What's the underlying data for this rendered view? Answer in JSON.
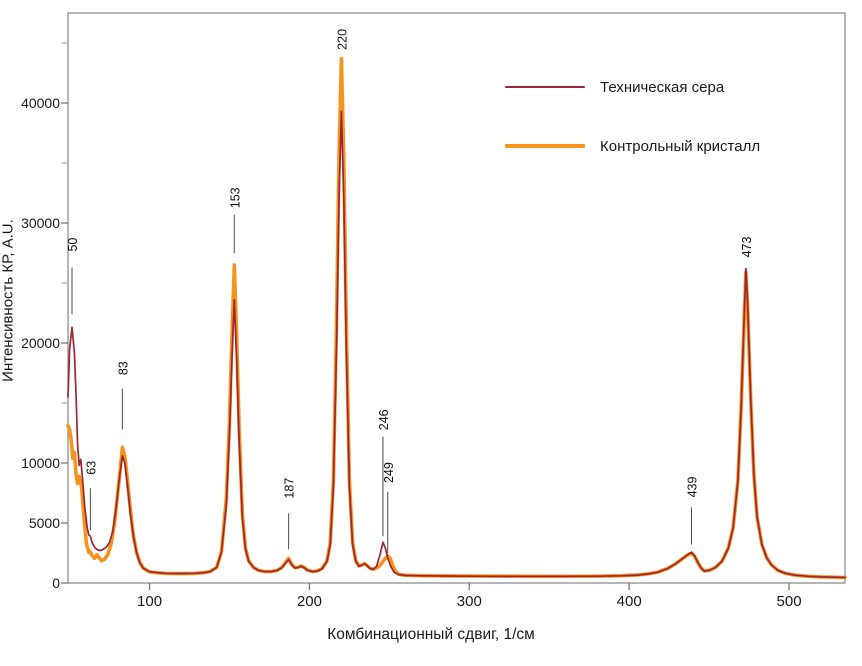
{
  "figure": {
    "background": "#ffffff",
    "frame_color": "#8f8f8f",
    "major_tick_color": "#777777",
    "minor_tick_color": "#ababab",
    "annotation_line_color": "#4a4a4a",
    "annotation_text_color": "#111111"
  },
  "chart_data": {
    "type": "line",
    "title": "",
    "xlabel": "Комбинационный сдвиг, 1/см",
    "ylabel": "Интенсивность КР, A.U.",
    "xlim": [
      49,
      535
    ],
    "ylim": [
      0,
      47500
    ],
    "grid": false,
    "legend_position": "upper-right-inside",
    "x_ticks": [
      100,
      200,
      300,
      400,
      500
    ],
    "y_ticks_labeled": [
      0,
      5000,
      10000,
      20000,
      30000,
      40000
    ],
    "y_ticks_minor": [
      15000,
      25000,
      35000,
      45000
    ],
    "peak_annotations": [
      {
        "label": "50",
        "x": 51.5,
        "label_value": 28200,
        "line": [
          26300,
          22400
        ]
      },
      {
        "label": "63",
        "x": 63,
        "label_value": 9600,
        "line": [
          7900,
          4400
        ]
      },
      {
        "label": "83",
        "x": 83,
        "label_value": 17900,
        "line": [
          16200,
          12800
        ]
      },
      {
        "label": "153",
        "x": 153,
        "label_value": 32100,
        "line": [
          30700,
          27500
        ]
      },
      {
        "label": "187",
        "x": 187,
        "label_value": 7900,
        "line": [
          5800,
          2800
        ]
      },
      {
        "label": "220",
        "x": 220,
        "label_value": 45300,
        "line": null
      },
      {
        "label": "246",
        "x": 246,
        "label_value": 13600,
        "line": [
          12200,
          3900
        ]
      },
      {
        "label": "249",
        "x": 249,
        "label_value": 9200,
        "line": [
          7600,
          2500
        ]
      },
      {
        "label": "439",
        "x": 439,
        "label_value": 8000,
        "line": [
          6300,
          3200
        ]
      },
      {
        "label": "473",
        "x": 473,
        "label_value": 28000,
        "line": null
      }
    ],
    "series": [
      {
        "name": "Контрольный кристалл",
        "color": "#f7941e",
        "line_width": 3.6,
        "points": [
          [
            49,
            13100
          ],
          [
            50,
            12800
          ],
          [
            51,
            11900
          ],
          [
            52,
            10400
          ],
          [
            53,
            10900
          ],
          [
            54,
            9100
          ],
          [
            55,
            8300
          ],
          [
            56,
            8900
          ],
          [
            57.5,
            8000
          ],
          [
            59,
            5400
          ],
          [
            60.5,
            3300
          ],
          [
            62,
            2550
          ],
          [
            63,
            2600
          ],
          [
            64,
            2300
          ],
          [
            65.5,
            2050
          ],
          [
            67,
            2350
          ],
          [
            68.5,
            2100
          ],
          [
            70,
            1850
          ],
          [
            72,
            2000
          ],
          [
            74,
            2400
          ],
          [
            76,
            3300
          ],
          [
            78,
            4900
          ],
          [
            80,
            7400
          ],
          [
            81.5,
            9300
          ],
          [
            83,
            11300
          ],
          [
            84.5,
            10600
          ],
          [
            86,
            8800
          ],
          [
            88,
            6100
          ],
          [
            90,
            3900
          ],
          [
            92,
            2500
          ],
          [
            94,
            1700
          ],
          [
            96,
            1250
          ],
          [
            100,
            920
          ],
          [
            105,
            850
          ],
          [
            110,
            800
          ],
          [
            116,
            780
          ],
          [
            122,
            780
          ],
          [
            128,
            800
          ],
          [
            134,
            860
          ],
          [
            138,
            960
          ],
          [
            142,
            1300
          ],
          [
            145,
            2600
          ],
          [
            148,
            7000
          ],
          [
            150,
            13500
          ],
          [
            151.5,
            20500
          ],
          [
            153,
            26500
          ],
          [
            154.5,
            20500
          ],
          [
            156,
            13000
          ],
          [
            158,
            5800
          ],
          [
            160,
            2900
          ],
          [
            162,
            1850
          ],
          [
            165,
            1300
          ],
          [
            168,
            1060
          ],
          [
            172,
            960
          ],
          [
            176,
            960
          ],
          [
            180,
            1060
          ],
          [
            183,
            1320
          ],
          [
            185,
            1700
          ],
          [
            187,
            2050
          ],
          [
            189,
            1550
          ],
          [
            191,
            1270
          ],
          [
            193,
            1320
          ],
          [
            195,
            1420
          ],
          [
            197,
            1270
          ],
          [
            199,
            1060
          ],
          [
            202,
            960
          ],
          [
            205,
            1010
          ],
          [
            208,
            1220
          ],
          [
            211,
            1850
          ],
          [
            213,
            3300
          ],
          [
            215,
            8500
          ],
          [
            217,
            22000
          ],
          [
            218.5,
            35500
          ],
          [
            220,
            43700
          ],
          [
            221.5,
            35500
          ],
          [
            223,
            22000
          ],
          [
            225,
            8500
          ],
          [
            227,
            3400
          ],
          [
            229,
            1850
          ],
          [
            231,
            1420
          ],
          [
            233,
            1520
          ],
          [
            234.5,
            1620
          ],
          [
            236,
            1470
          ],
          [
            238,
            1220
          ],
          [
            240,
            1150
          ],
          [
            242,
            1250
          ],
          [
            244,
            1450
          ],
          [
            246,
            1800
          ],
          [
            247.5,
            2050
          ],
          [
            249,
            2250
          ],
          [
            250.5,
            2050
          ],
          [
            252,
            1500
          ],
          [
            254,
            950
          ],
          [
            256,
            720
          ],
          [
            260,
            640
          ],
          [
            270,
            610
          ],
          [
            285,
            590
          ],
          [
            300,
            575
          ],
          [
            320,
            565
          ],
          [
            340,
            560
          ],
          [
            360,
            560
          ],
          [
            380,
            570
          ],
          [
            395,
            605
          ],
          [
            405,
            665
          ],
          [
            412,
            765
          ],
          [
            418,
            905
          ],
          [
            424,
            1200
          ],
          [
            429,
            1600
          ],
          [
            433,
            1980
          ],
          [
            436,
            2280
          ],
          [
            439,
            2500
          ],
          [
            441,
            2220
          ],
          [
            443,
            1700
          ],
          [
            445,
            1250
          ],
          [
            447,
            1000
          ],
          [
            450,
            1050
          ],
          [
            454,
            1300
          ],
          [
            458,
            1800
          ],
          [
            462,
            2900
          ],
          [
            465,
            4600
          ],
          [
            468,
            8500
          ],
          [
            470,
            14500
          ],
          [
            472,
            22300
          ],
          [
            473,
            25900
          ],
          [
            474,
            23300
          ],
          [
            476,
            15400
          ],
          [
            478,
            9000
          ],
          [
            480,
            5500
          ],
          [
            483,
            3200
          ],
          [
            486,
            2100
          ],
          [
            489,
            1500
          ],
          [
            493,
            1050
          ],
          [
            498,
            800
          ],
          [
            504,
            650
          ],
          [
            512,
            560
          ],
          [
            520,
            510
          ],
          [
            528,
            480
          ],
          [
            535,
            460
          ]
        ]
      },
      {
        "name": "Техническая сера",
        "color": "#9c2634",
        "line_width": 1.7,
        "points": [
          [
            49,
            15500
          ],
          [
            50,
            19500
          ],
          [
            51.5,
            21300
          ],
          [
            53,
            19200
          ],
          [
            54,
            15800
          ],
          [
            55,
            11500
          ],
          [
            56,
            9800
          ],
          [
            57,
            10300
          ],
          [
            58,
            8800
          ],
          [
            59.5,
            6300
          ],
          [
            61,
            4600
          ],
          [
            62,
            4000
          ],
          [
            63,
            3900
          ],
          [
            64,
            3400
          ],
          [
            65.5,
            3000
          ],
          [
            67,
            2800
          ],
          [
            69,
            2700
          ],
          [
            71,
            2800
          ],
          [
            73,
            3000
          ],
          [
            75,
            3400
          ],
          [
            77,
            4300
          ],
          [
            79,
            6200
          ],
          [
            81,
            8600
          ],
          [
            83,
            10600
          ],
          [
            84.5,
            10000
          ],
          [
            86,
            8300
          ],
          [
            88,
            5800
          ],
          [
            90,
            3800
          ],
          [
            92,
            2500
          ],
          [
            94,
            1700
          ],
          [
            96,
            1250
          ],
          [
            100,
            950
          ],
          [
            105,
            860
          ],
          [
            110,
            810
          ],
          [
            116,
            790
          ],
          [
            122,
            790
          ],
          [
            128,
            810
          ],
          [
            134,
            860
          ],
          [
            138,
            960
          ],
          [
            142,
            1300
          ],
          [
            145,
            2600
          ],
          [
            148,
            6500
          ],
          [
            150,
            12500
          ],
          [
            151.5,
            18500
          ],
          [
            153,
            23600
          ],
          [
            154.5,
            18500
          ],
          [
            156,
            12000
          ],
          [
            158,
            5500
          ],
          [
            160,
            2800
          ],
          [
            162,
            1800
          ],
          [
            165,
            1300
          ],
          [
            168,
            1050
          ],
          [
            172,
            950
          ],
          [
            176,
            950
          ],
          [
            180,
            1050
          ],
          [
            183,
            1300
          ],
          [
            185,
            1650
          ],
          [
            187,
            1950
          ],
          [
            189,
            1500
          ],
          [
            191,
            1250
          ],
          [
            193,
            1300
          ],
          [
            195,
            1400
          ],
          [
            197,
            1250
          ],
          [
            199,
            1050
          ],
          [
            202,
            950
          ],
          [
            205,
            1000
          ],
          [
            208,
            1200
          ],
          [
            211,
            1800
          ],
          [
            213,
            3200
          ],
          [
            215,
            8000
          ],
          [
            217,
            20000
          ],
          [
            218.5,
            32000
          ],
          [
            220,
            39300
          ],
          [
            221.5,
            32000
          ],
          [
            223,
            20000
          ],
          [
            225,
            8000
          ],
          [
            227,
            3200
          ],
          [
            229,
            1800
          ],
          [
            231,
            1400
          ],
          [
            233,
            1500
          ],
          [
            234.5,
            1600
          ],
          [
            236,
            1450
          ],
          [
            238,
            1200
          ],
          [
            240,
            1150
          ],
          [
            242,
            1400
          ],
          [
            244,
            2300
          ],
          [
            246,
            3400
          ],
          [
            247.5,
            2900
          ],
          [
            249,
            2050
          ],
          [
            251,
            1350
          ],
          [
            253,
            900
          ],
          [
            256,
            700
          ],
          [
            260,
            630
          ],
          [
            270,
            600
          ],
          [
            285,
            580
          ],
          [
            300,
            570
          ],
          [
            320,
            560
          ],
          [
            340,
            555
          ],
          [
            360,
            555
          ],
          [
            380,
            565
          ],
          [
            395,
            600
          ],
          [
            405,
            660
          ],
          [
            412,
            760
          ],
          [
            418,
            900
          ],
          [
            424,
            1200
          ],
          [
            429,
            1600
          ],
          [
            433,
            2000
          ],
          [
            436,
            2300
          ],
          [
            439,
            2550
          ],
          [
            441,
            2250
          ],
          [
            443,
            1700
          ],
          [
            445,
            1250
          ],
          [
            447,
            1000
          ],
          [
            450,
            1050
          ],
          [
            454,
            1300
          ],
          [
            458,
            1800
          ],
          [
            462,
            2900
          ],
          [
            465,
            4600
          ],
          [
            468,
            8500
          ],
          [
            470,
            14500
          ],
          [
            472,
            22500
          ],
          [
            473,
            26200
          ],
          [
            474,
            23500
          ],
          [
            476,
            15500
          ],
          [
            478,
            9000
          ],
          [
            480,
            5500
          ],
          [
            483,
            3200
          ],
          [
            486,
            2100
          ],
          [
            489,
            1500
          ],
          [
            493,
            1050
          ],
          [
            498,
            800
          ],
          [
            504,
            650
          ],
          [
            512,
            560
          ],
          [
            520,
            510
          ],
          [
            528,
            480
          ],
          [
            535,
            460
          ]
        ]
      }
    ],
    "legend_order": [
      "Техническая сера",
      "Контрольный кристалл"
    ]
  }
}
